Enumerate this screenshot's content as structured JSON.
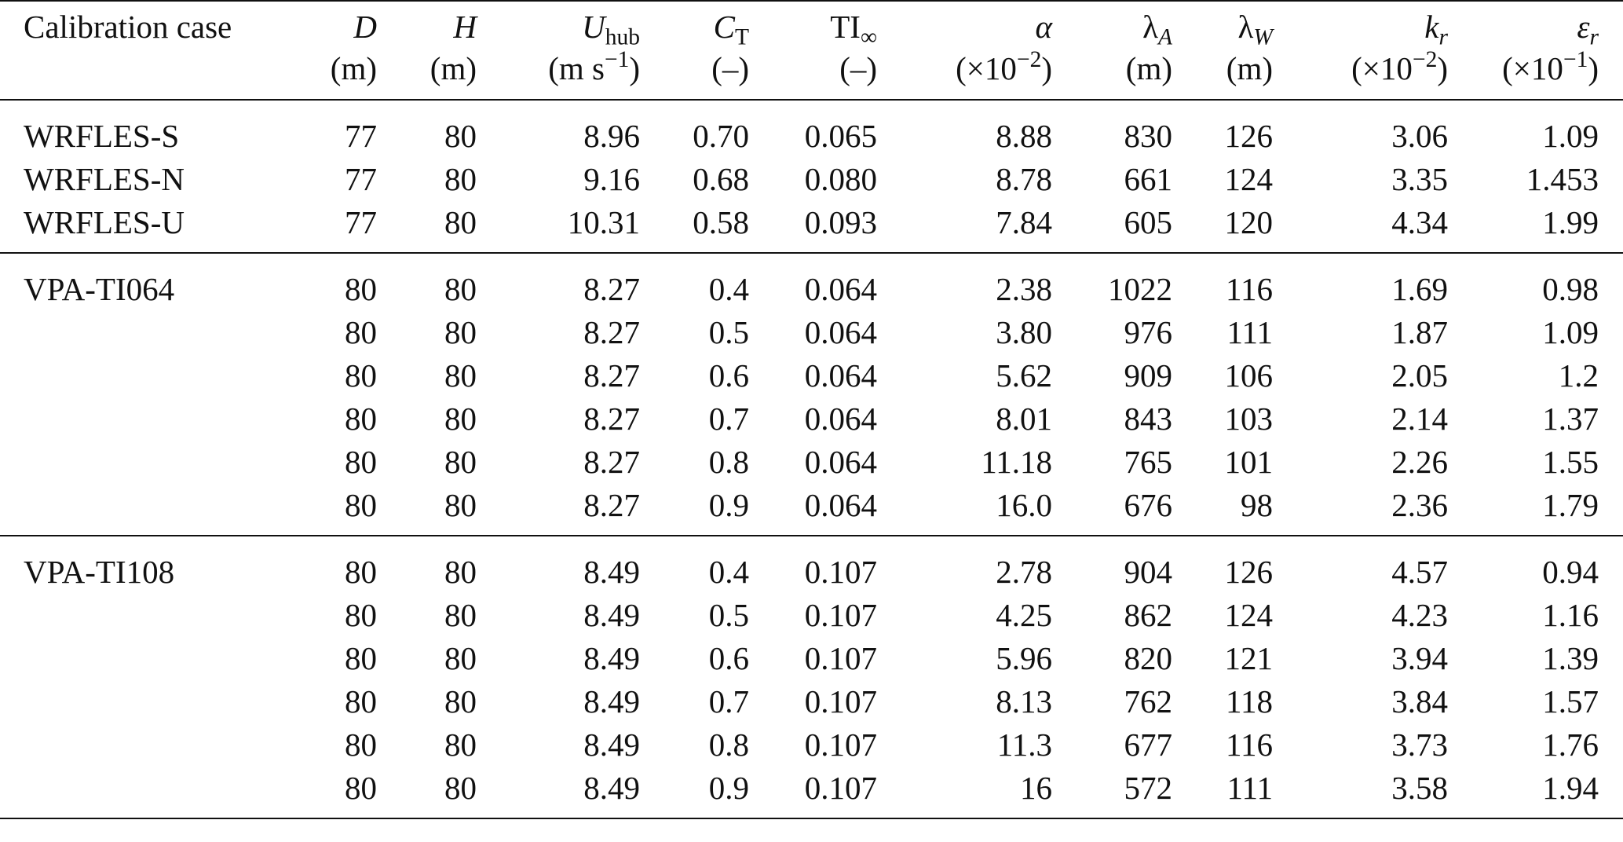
{
  "table": {
    "header": {
      "case": "Calibration case",
      "D": {
        "symbol": "D",
        "unit": "(m)"
      },
      "H": {
        "symbol": "H",
        "unit": "(m)"
      },
      "Uhub": {
        "symbol": "U",
        "sub": "hub",
        "unit": "(m s",
        "unit_sup": "−1",
        "unit_close": ")"
      },
      "CT": {
        "symbol": "C",
        "sub": "T",
        "unit": "(–)"
      },
      "TI": {
        "symbol": "TI",
        "sub": "∞",
        "unit": "(–)"
      },
      "alpha": {
        "symbol": "α",
        "unit": "(×10",
        "unit_sup": "−2",
        "unit_close": ")"
      },
      "lambdaA": {
        "symbol": "λ",
        "sub": "A",
        "unit": "(m)"
      },
      "lambdaW": {
        "symbol": "λ",
        "sub": "W",
        "unit": "(m)"
      },
      "kr": {
        "symbol": "k",
        "sub": "r",
        "unit": "(×10",
        "unit_sup": "−2",
        "unit_close": ")"
      },
      "eps": {
        "symbol": "ε",
        "sub": "r",
        "unit": "(×10",
        "unit_sup": "−1",
        "unit_close": ")"
      }
    },
    "groups": [
      {
        "rows": [
          [
            "WRFLES-S",
            "77",
            "80",
            "8.96",
            "0.70",
            "0.065",
            "8.88",
            "830",
            "126",
            "3.06",
            "1.09"
          ],
          [
            "WRFLES-N",
            "77",
            "80",
            "9.16",
            "0.68",
            "0.080",
            "8.78",
            "661",
            "124",
            "3.35",
            "1.453"
          ],
          [
            "WRFLES-U",
            "77",
            "80",
            "10.31",
            "0.58",
            "0.093",
            "7.84",
            "605",
            "120",
            "4.34",
            "1.99"
          ]
        ]
      },
      {
        "rows": [
          [
            "VPA-TI064",
            "80",
            "80",
            "8.27",
            "0.4",
            "0.064",
            "2.38",
            "1022",
            "116",
            "1.69",
            "0.98"
          ],
          [
            "",
            "80",
            "80",
            "8.27",
            "0.5",
            "0.064",
            "3.80",
            "976",
            "111",
            "1.87",
            "1.09"
          ],
          [
            "",
            "80",
            "80",
            "8.27",
            "0.6",
            "0.064",
            "5.62",
            "909",
            "106",
            "2.05",
            "1.2"
          ],
          [
            "",
            "80",
            "80",
            "8.27",
            "0.7",
            "0.064",
            "8.01",
            "843",
            "103",
            "2.14",
            "1.37"
          ],
          [
            "",
            "80",
            "80",
            "8.27",
            "0.8",
            "0.064",
            "11.18",
            "765",
            "101",
            "2.26",
            "1.55"
          ],
          [
            "",
            "80",
            "80",
            "8.27",
            "0.9",
            "0.064",
            "16.0",
            "676",
            "98",
            "2.36",
            "1.79"
          ]
        ]
      },
      {
        "rows": [
          [
            "VPA-TI108",
            "80",
            "80",
            "8.49",
            "0.4",
            "0.107",
            "2.78",
            "904",
            "126",
            "4.57",
            "0.94"
          ],
          [
            "",
            "80",
            "80",
            "8.49",
            "0.5",
            "0.107",
            "4.25",
            "862",
            "124",
            "4.23",
            "1.16"
          ],
          [
            "",
            "80",
            "80",
            "8.49",
            "0.6",
            "0.107",
            "5.96",
            "820",
            "121",
            "3.94",
            "1.39"
          ],
          [
            "",
            "80",
            "80",
            "8.49",
            "0.7",
            "0.107",
            "8.13",
            "762",
            "118",
            "3.84",
            "1.57"
          ],
          [
            "",
            "80",
            "80",
            "8.49",
            "0.8",
            "0.107",
            "11.3",
            "677",
            "116",
            "3.73",
            "1.76"
          ],
          [
            "",
            "80",
            "80",
            "8.49",
            "0.9",
            "0.107",
            "16",
            "572",
            "111",
            "3.58",
            "1.94"
          ]
        ]
      }
    ]
  }
}
